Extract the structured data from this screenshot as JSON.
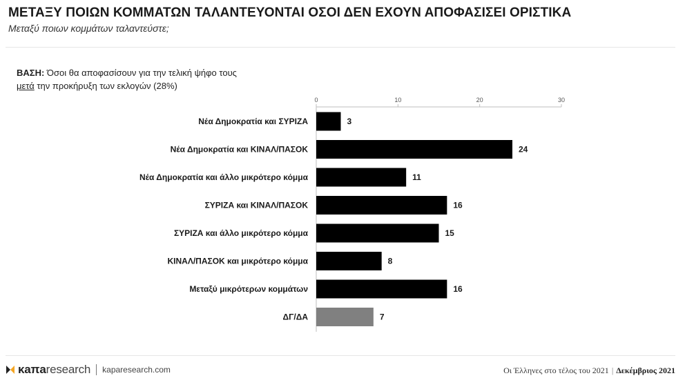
{
  "header": {
    "title": "ΜΕΤΑΞΥ ΠΟΙΩΝ ΚΟΜΜΑΤΩΝ ΤΑΛΑΝΤΕΥΟΝΤΑΙ ΟΣΟΙ ΔΕΝ ΕΧΟΥΝ ΑΠΟΦΑΣΙΣΕΙ ΟΡΙΣΤΙΚΑ",
    "subtitle": "Μεταξύ ποιων κομμάτων ταλαντεύστε;"
  },
  "base_note": {
    "label": "ΒΑΣΗ:",
    "line1": "Όσοι θα αποφασίσουν για την τελική ψήφο τους",
    "underlined": "μετά",
    "line2_rest": " την προκήρυξη των εκλογών (28%)"
  },
  "chart_data": {
    "type": "bar",
    "orientation": "horizontal",
    "categories": [
      "Νέα Δημοκρατία και ΣΥΡΙΖΑ",
      "Νέα Δημοκρατία και ΚΙΝΑΛ/ΠΑΣΟΚ",
      "Νέα Δημοκρατία και άλλο μικρότερο κόμμα",
      "ΣΥΡΙΖΑ και ΚΙΝΑΛ/ΠΑΣΟΚ",
      "ΣΥΡΙΖΑ και άλλο μικρότερο κόμμα",
      "ΚΙΝΑΛ/ΠΑΣΟΚ και μικρότερο κόμμα",
      "Μεταξύ μικρότερων κομμάτων",
      "ΔΓ/ΔΑ"
    ],
    "values": [
      3,
      24,
      11,
      16,
      15,
      8,
      16,
      7
    ],
    "bar_colors": [
      "#000000",
      "#000000",
      "#000000",
      "#000000",
      "#000000",
      "#000000",
      "#000000",
      "#808080"
    ],
    "xlim": [
      0,
      30
    ],
    "xticks": [
      0,
      10,
      20,
      30
    ],
    "axis_position": "top",
    "grid": false
  },
  "footer": {
    "brand_bold": "κaπa",
    "brand_rest": "research",
    "url": "kaparesearch.com",
    "caption": "Οι Έλληνες στο τέλος του 2021",
    "separator": "|",
    "date": "Δεκέμβριος 2021"
  },
  "colors": {
    "bar": "#000000",
    "bar_dk_na": "#808080",
    "logo_accent": "#f5a623"
  },
  "icons": {
    "logo": "kapa-logo-icon"
  }
}
